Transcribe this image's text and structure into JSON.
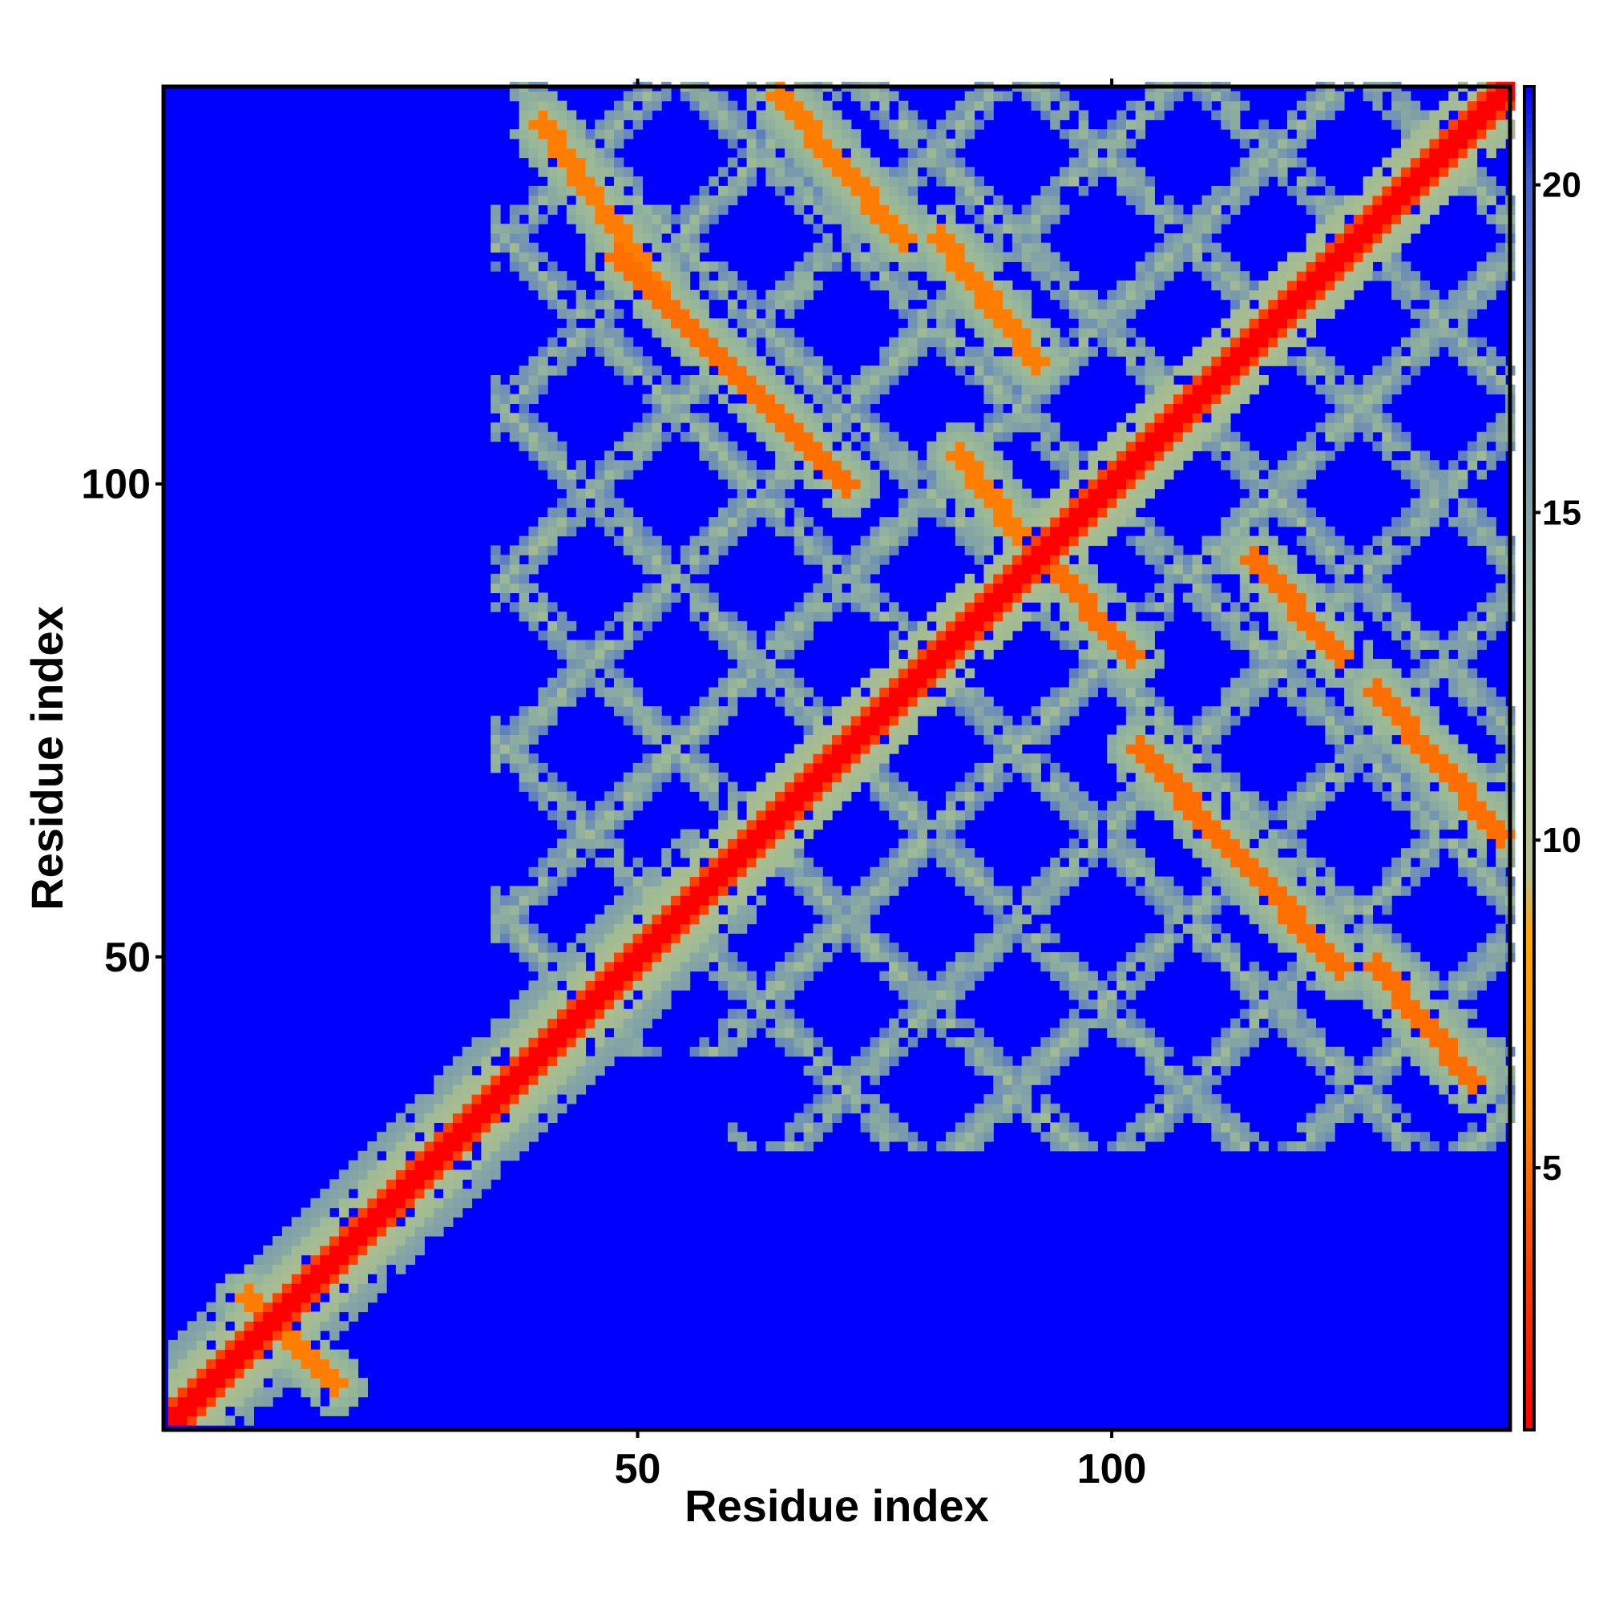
{
  "chart_data": {
    "type": "heatmap",
    "title": "",
    "xlabel": "Residue index",
    "ylabel": "Residue index",
    "xlim": [
      1,
      142
    ],
    "ylim": [
      1,
      142
    ],
    "x_ticks": [
      50,
      100
    ],
    "y_ticks": [
      50,
      100
    ],
    "colorbar": {
      "range": [
        1,
        21.5
      ],
      "ticks": [
        5,
        10,
        15,
        20
      ],
      "stops": [
        {
          "value": 1,
          "color": "#ff0000"
        },
        {
          "value": 3.5,
          "color": "#ff4000"
        },
        {
          "value": 6,
          "color": "#ff8c00"
        },
        {
          "value": 8.5,
          "color": "#ffa500"
        },
        {
          "value": 9.5,
          "color": "#b4c08c"
        },
        {
          "value": 13,
          "color": "#98b898"
        },
        {
          "value": 17,
          "color": "#6a8ab8"
        },
        {
          "value": 20,
          "color": "#4060d0"
        },
        {
          "value": 21.5,
          "color": "#0000ff"
        }
      ]
    },
    "background_value": 21.5,
    "matrix_description": "symmetric residue-residue distance map with low-distance (red/orange) diagonal and antiparallel contact streaks",
    "diagonal_band": {
      "start": 1,
      "end": 142,
      "value": 1
    },
    "contact_streaks": [
      {
        "x": [
          40,
          52
        ],
        "y": [
          138,
          121
        ],
        "value": 5.5
      },
      {
        "x": [
          65,
          78
        ],
        "y": [
          141,
          126
        ],
        "value": 5.5
      },
      {
        "x": [
          48,
          72
        ],
        "y": [
          124,
          100
        ],
        "value": 5.0
      },
      {
        "x": [
          82,
          92
        ],
        "y": [
          126,
          113
        ],
        "value": 5.5
      },
      {
        "x": [
          84,
          90
        ],
        "y": [
          103,
          95
        ],
        "value": 5.5
      },
      {
        "x": [
          93,
          102
        ],
        "y": [
          92,
          82
        ],
        "value": 5.0
      },
      {
        "x": [
          115,
          124
        ],
        "y": [
          92,
          82
        ],
        "value": 5.0
      },
      {
        "x": [
          128,
          141
        ],
        "y": [
          78,
          63
        ],
        "value": 5.0
      },
      {
        "x": [
          103,
          124
        ],
        "y": [
          72,
          49
        ],
        "value": 5.0
      },
      {
        "x": [
          128,
          138
        ],
        "y": [
          49,
          37
        ],
        "value": 5.0
      },
      {
        "x": [
          9,
          18
        ],
        "y": [
          14,
          5
        ],
        "value": 5.5
      }
    ],
    "gray_grid_bands": {
      "diagonal_spacing": 18,
      "value": 12,
      "x_range": [
        35,
        142
      ],
      "y_range": [
        35,
        142
      ]
    }
  }
}
